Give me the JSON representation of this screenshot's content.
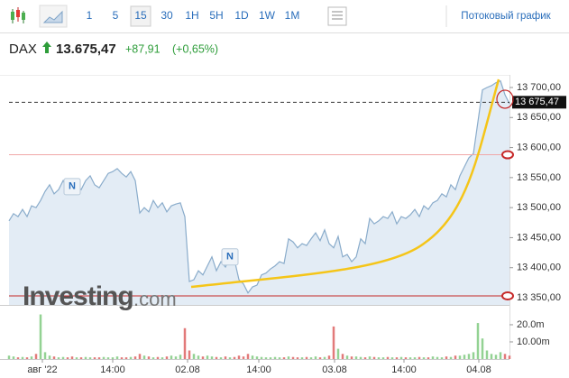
{
  "toolbar": {
    "intervals": [
      "1",
      "5",
      "15",
      "30",
      "1H",
      "5H",
      "1D",
      "1W",
      "1M"
    ],
    "selected_interval": "15",
    "stream_label": "Потоковый график"
  },
  "quote": {
    "symbol": "DAX",
    "price": "13.675,47",
    "change": "+87,91",
    "change_pct": "(+0,65%)"
  },
  "watermark": {
    "brand": "Investing",
    "suffix": ".com"
  },
  "chart_data": {
    "type": "area",
    "color": "#8aaccb",
    "fill": "#e3ecf5",
    "values": [
      13478,
      13490,
      13485,
      13497,
      13485,
      13503,
      13500,
      13512,
      13527,
      13538,
      13523,
      13530,
      13545,
      13530,
      13523,
      13538,
      13530,
      13545,
      13553,
      13538,
      13533,
      13545,
      13557,
      13560,
      13565,
      13557,
      13551,
      13560,
      13545,
      13491,
      13500,
      13493,
      13512,
      13500,
      13508,
      13493,
      13503,
      13506,
      13508,
      13485,
      13377,
      13380,
      13395,
      13388,
      13403,
      13418,
      13395,
      13410,
      13401,
      13418,
      13413,
      13380,
      13373,
      13358,
      13368,
      13371,
      13388,
      13391,
      13398,
      13403,
      13410,
      13407,
      13448,
      13443,
      13433,
      13440,
      13437,
      13448,
      13458,
      13445,
      13463,
      13440,
      13433,
      13452,
      13418,
      13422,
      13410,
      13418,
      13448,
      13440,
      13482,
      13473,
      13478,
      13485,
      13482,
      13493,
      13473,
      13485,
      13482,
      13488,
      13497,
      13485,
      13503,
      13497,
      13508,
      13512,
      13523,
      13518,
      13538,
      13530,
      13553,
      13568,
      13583,
      13590,
      13643,
      13696,
      13700,
      13703,
      13708,
      13711,
      13688,
      13673
    ],
    "xlim": [
      0,
      111
    ],
    "xticks": [
      {
        "value": 7.4,
        "label": "авг '22"
      },
      {
        "value": 23,
        "label": "14:00"
      },
      {
        "value": 39.6,
        "label": "02.08"
      },
      {
        "value": 55.4,
        "label": "14:00"
      },
      {
        "value": 72.2,
        "label": "03.08"
      },
      {
        "value": 87.6,
        "label": "14:00"
      },
      {
        "value": 104.2,
        "label": "04.08"
      }
    ],
    "ylim": [
      13338,
      13718
    ],
    "yticks": [
      {
        "value": 13350,
        "label": "13 350,00"
      },
      {
        "value": 13400,
        "label": "13 400,00"
      },
      {
        "value": 13450,
        "label": "13 450,00"
      },
      {
        "value": 13500,
        "label": "13 500,00"
      },
      {
        "value": 13550,
        "label": "13 550,00"
      },
      {
        "value": 13600,
        "label": "13 600,00"
      },
      {
        "value": 13650,
        "label": "13 650,00"
      },
      {
        "value": 13700,
        "label": "13 700,00"
      }
    ],
    "last": {
      "value": 13675.47,
      "label": "13 675,47"
    },
    "hlines": [
      {
        "value": 13588,
        "color": "#f0a8a8"
      },
      {
        "value": 13353,
        "color": "#c62828"
      }
    ],
    "annotations": [
      {
        "x": 14,
        "y": 13535,
        "label": "N"
      },
      {
        "x": 49,
        "y": 13418,
        "label": "N"
      }
    ],
    "volume": {
      "values": [
        2,
        1.5,
        1,
        1.2,
        1,
        1.5,
        3,
        26,
        4,
        2,
        1.5,
        1,
        1.2,
        1,
        1.5,
        1,
        1,
        1.2,
        1,
        1,
        1,
        1.2,
        1,
        1,
        1.5,
        1,
        1,
        1.2,
        1.5,
        3,
        2,
        1.5,
        1,
        1.2,
        1,
        1.5,
        2,
        1.5,
        2.5,
        18,
        5,
        3,
        2,
        1.5,
        2,
        1.5,
        1.2,
        1,
        1.5,
        1,
        1.2,
        2,
        1.5,
        3,
        2,
        1.5,
        1.2,
        1,
        1,
        1.2,
        1,
        1,
        1.5,
        1.2,
        1,
        1,
        1.2,
        1,
        1.5,
        1,
        1.2,
        2,
        19,
        6,
        3,
        2,
        1.5,
        1.5,
        1.2,
        1,
        1.5,
        1.2,
        1,
        1,
        1.2,
        1,
        1,
        1.2,
        1,
        1,
        1,
        1.2,
        1,
        1,
        1.5,
        1.2,
        1,
        1.5,
        1.2,
        2,
        2,
        2.5,
        3,
        4,
        21,
        12,
        5,
        3,
        2.5,
        4,
        3,
        2
      ],
      "ylim": [
        0,
        30.5
      ],
      "yticks": [
        {
          "value": 10,
          "label": "10.00m"
        },
        {
          "value": 20,
          "label": "20.0m"
        }
      ],
      "up_color": "#93d293",
      "down_color": "#e27a7a"
    }
  }
}
